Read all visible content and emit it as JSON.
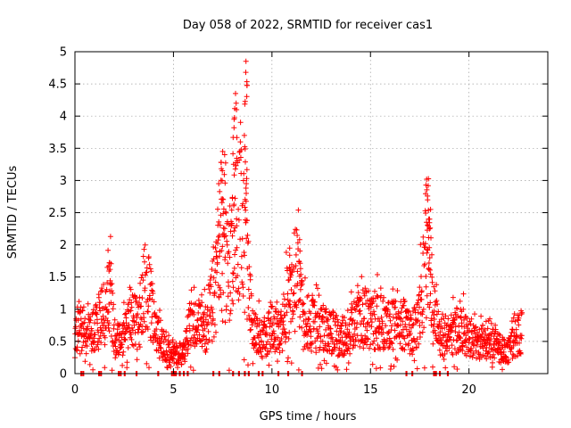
{
  "chart_data": {
    "type": "scatter",
    "title": "Day 058 of 2022, SRMTID for receiver cas1",
    "xlabel": "GPS time / hours",
    "ylabel": "SRMTID / TECUs",
    "xlim": [
      0,
      24
    ],
    "ylim": [
      0,
      5
    ],
    "xticks": [
      0,
      5,
      10,
      15,
      20
    ],
    "xtick_labels": [
      "0",
      "5",
      "10",
      "15",
      "20"
    ],
    "yticks": [
      0,
      0.5,
      1,
      1.5,
      2,
      2.5,
      3,
      3.5,
      4,
      4.5,
      5
    ],
    "ytick_labels": [
      "0",
      "0.5",
      "1",
      "1.5",
      "2",
      "2.5",
      "3",
      "3.5",
      "4",
      "4.5",
      "5"
    ],
    "grid": true,
    "marker": "+",
    "series": [
      {
        "name": "cas1",
        "color": "#ff0000",
        "envelope": [
          {
            "t": 0.0,
            "v": 0.55
          },
          {
            "t": 0.3,
            "v": 0.7
          },
          {
            "t": 0.6,
            "v": 0.6
          },
          {
            "t": 1.0,
            "v": 0.7
          },
          {
            "t": 1.3,
            "v": 0.85
          },
          {
            "t": 1.6,
            "v": 1.05
          },
          {
            "t": 1.8,
            "v": 1.4
          },
          {
            "t": 2.0,
            "v": 0.55
          },
          {
            "t": 2.4,
            "v": 0.5
          },
          {
            "t": 2.8,
            "v": 0.9
          },
          {
            "t": 3.2,
            "v": 0.7
          },
          {
            "t": 3.5,
            "v": 1.25
          },
          {
            "t": 3.8,
            "v": 1.2
          },
          {
            "t": 4.1,
            "v": 0.6
          },
          {
            "t": 4.5,
            "v": 0.45
          },
          {
            "t": 5.0,
            "v": 0.35
          },
          {
            "t": 5.5,
            "v": 0.3
          },
          {
            "t": 5.8,
            "v": 0.7
          },
          {
            "t": 6.2,
            "v": 0.75
          },
          {
            "t": 6.6,
            "v": 0.7
          },
          {
            "t": 7.0,
            "v": 1.1
          },
          {
            "t": 7.4,
            "v": 1.8
          },
          {
            "t": 7.8,
            "v": 1.6
          },
          {
            "t": 8.2,
            "v": 2.2
          },
          {
            "t": 8.5,
            "v": 2.5
          },
          {
            "t": 8.7,
            "v": 1.8
          },
          {
            "t": 9.0,
            "v": 0.7
          },
          {
            "t": 9.5,
            "v": 0.55
          },
          {
            "t": 10.0,
            "v": 0.7
          },
          {
            "t": 10.5,
            "v": 0.7
          },
          {
            "t": 11.0,
            "v": 1.4
          },
          {
            "t": 11.3,
            "v": 1.5
          },
          {
            "t": 11.6,
            "v": 0.8
          },
          {
            "t": 12.0,
            "v": 0.75
          },
          {
            "t": 12.5,
            "v": 0.7
          },
          {
            "t": 13.0,
            "v": 0.65
          },
          {
            "t": 13.5,
            "v": 0.55
          },
          {
            "t": 14.0,
            "v": 0.7
          },
          {
            "t": 14.5,
            "v": 0.8
          },
          {
            "t": 15.0,
            "v": 0.85
          },
          {
            "t": 15.5,
            "v": 0.8
          },
          {
            "t": 16.0,
            "v": 0.75
          },
          {
            "t": 16.5,
            "v": 0.9
          },
          {
            "t": 17.0,
            "v": 0.6
          },
          {
            "t": 17.3,
            "v": 0.7
          },
          {
            "t": 17.6,
            "v": 1.2
          },
          {
            "t": 17.9,
            "v": 2.1
          },
          {
            "t": 18.2,
            "v": 0.9
          },
          {
            "t": 18.6,
            "v": 0.55
          },
          {
            "t": 19.0,
            "v": 0.55
          },
          {
            "t": 19.5,
            "v": 0.75
          },
          {
            "t": 20.0,
            "v": 0.55
          },
          {
            "t": 20.5,
            "v": 0.45
          },
          {
            "t": 21.0,
            "v": 0.55
          },
          {
            "t": 21.5,
            "v": 0.4
          },
          {
            "t": 22.0,
            "v": 0.35
          },
          {
            "t": 22.4,
            "v": 0.55
          },
          {
            "t": 22.7,
            "v": 0.7
          }
        ],
        "peaks": [
          {
            "t": 8.68,
            "v": 4.85
          },
          {
            "t": 8.67,
            "v": 4.68
          },
          {
            "t": 8.15,
            "v": 4.35
          },
          {
            "t": 8.2,
            "v": 4.1
          },
          {
            "t": 8.08,
            "v": 3.95
          },
          {
            "t": 7.5,
            "v": 3.45
          },
          {
            "t": 7.42,
            "v": 3.28
          },
          {
            "t": 7.6,
            "v": 3.4
          },
          {
            "t": 8.6,
            "v": 3.7
          },
          {
            "t": 8.05,
            "v": 3.25
          },
          {
            "t": 7.3,
            "v": 2.95
          },
          {
            "t": 17.85,
            "v": 3.02
          },
          {
            "t": 17.9,
            "v": 2.7
          },
          {
            "t": 18.05,
            "v": 2.55
          },
          {
            "t": 17.95,
            "v": 2.4
          },
          {
            "t": 1.75,
            "v": 1.72
          },
          {
            "t": 11.4,
            "v": 2.08
          },
          {
            "t": 10.9,
            "v": 1.95
          },
          {
            "t": 8.7,
            "v": 2.95
          }
        ],
        "zeros": [
          0.3,
          0.4,
          1.2,
          1.3,
          2.2,
          2.3,
          2.5,
          3.1,
          4.2,
          4.9,
          5.0,
          5.1,
          5.3,
          5.5,
          5.7,
          7.0,
          7.3,
          8.0,
          8.3,
          8.6,
          8.8,
          9.3,
          9.5,
          10.3,
          10.8,
          11.5,
          16.8,
          17.1,
          18.2,
          18.3,
          18.5,
          18.9
        ]
      }
    ]
  }
}
